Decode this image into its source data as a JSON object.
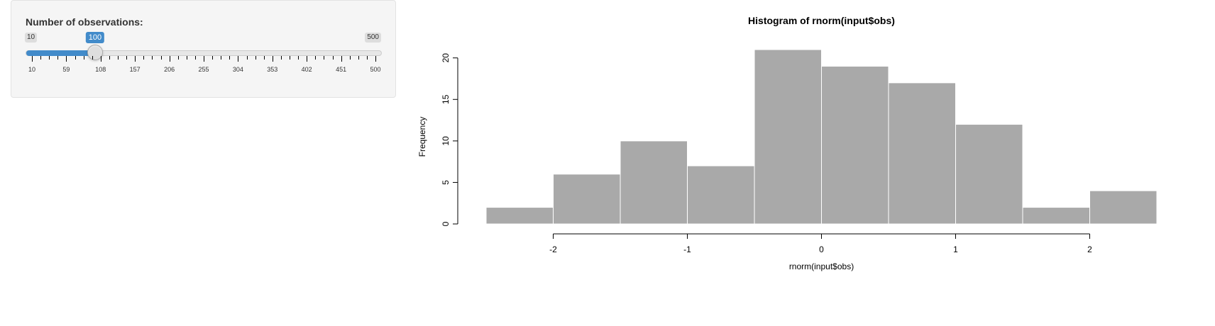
{
  "slider": {
    "label": "Number of observations:",
    "min": 10,
    "max": 500,
    "value": 100,
    "min_label": "10",
    "max_label": "500",
    "value_label": "100",
    "tick_labels": [
      "10",
      "59",
      "108",
      "157",
      "206",
      "255",
      "304",
      "353",
      "402",
      "451",
      "500"
    ],
    "accent_color": "#428bca"
  },
  "chart_data": {
    "type": "bar",
    "title": "Histogram of rnorm(input$obs)",
    "xlabel": "rnorm(input$obs)",
    "ylabel": "Frequency",
    "bins": [
      {
        "x0": -2.5,
        "x1": -2.0,
        "count": 2
      },
      {
        "x0": -2.0,
        "x1": -1.5,
        "count": 6
      },
      {
        "x0": -1.5,
        "x1": -1.0,
        "count": 10
      },
      {
        "x0": -1.0,
        "x1": -0.5,
        "count": 7
      },
      {
        "x0": -0.5,
        "x1": 0.0,
        "count": 21
      },
      {
        "x0": 0.0,
        "x1": 0.5,
        "count": 19
      },
      {
        "x0": 0.5,
        "x1": 1.0,
        "count": 17
      },
      {
        "x0": 1.0,
        "x1": 1.5,
        "count": 12
      },
      {
        "x0": 1.5,
        "x1": 2.0,
        "count": 2
      },
      {
        "x0": 2.0,
        "x1": 2.5,
        "count": 4
      }
    ],
    "xlim": [
      -2.5,
      2.5
    ],
    "ylim": [
      0,
      21
    ],
    "x_ticks": [
      -2,
      -1,
      0,
      1,
      2
    ],
    "x_tick_labels": [
      "-2",
      "-1",
      "0",
      "1",
      "2"
    ],
    "y_ticks": [
      0,
      5,
      10,
      15,
      20
    ],
    "y_tick_labels": [
      "0",
      "5",
      "10",
      "15",
      "20"
    ],
    "bar_color": "#a9a9a9",
    "bar_border_color": "#ffffff",
    "grid": false,
    "legend": "none"
  }
}
